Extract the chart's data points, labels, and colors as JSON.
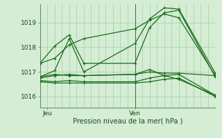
{
  "title": "",
  "xlabel": "Pression niveau de la mer( hPa )",
  "background_color": "#d4edd4",
  "grid_color": "#a8cca8",
  "line_color": "#1a6b1a",
  "ylim": [
    1015.55,
    1019.75
  ],
  "xlim": [
    0,
    48
  ],
  "xtick_positions": [
    2,
    26
  ],
  "xticklabels": [
    "Jeu",
    "Ven"
  ],
  "yticks": [
    1016,
    1017,
    1018,
    1019
  ],
  "ven_line_x": 26,
  "lines": [
    [
      0,
      1017.35,
      4,
      1017.55,
      8,
      1018.1,
      12,
      1018.35,
      26,
      1018.75,
      30,
      1019.1,
      34,
      1019.35,
      38,
      1019.2,
      48,
      1016.85
    ],
    [
      0,
      1017.35,
      4,
      1018.05,
      8,
      1018.5,
      12,
      1017.35,
      26,
      1017.35,
      30,
      1018.8,
      34,
      1019.4,
      38,
      1019.5,
      48,
      1016.8
    ],
    [
      0,
      1016.8,
      4,
      1017.05,
      8,
      1018.35,
      12,
      1017.0,
      26,
      1018.15,
      30,
      1019.15,
      34,
      1019.6,
      38,
      1019.55,
      48,
      1016.95
    ],
    [
      0,
      1016.8,
      4,
      1016.9,
      8,
      1016.85,
      12,
      1016.85,
      26,
      1016.9,
      30,
      1017.1,
      34,
      1016.85,
      38,
      1016.7,
      48,
      1016.05
    ],
    [
      0,
      1016.65,
      4,
      1016.6,
      8,
      1016.65,
      12,
      1016.6,
      26,
      1016.6,
      30,
      1016.75,
      34,
      1016.85,
      38,
      1016.9,
      48,
      1016.05
    ],
    [
      0,
      1016.6,
      4,
      1016.55,
      8,
      1016.55,
      12,
      1016.55,
      26,
      1016.55,
      30,
      1016.6,
      34,
      1016.7,
      38,
      1016.75,
      48,
      1016.0
    ],
    [
      0,
      1016.75,
      4,
      1016.85,
      8,
      1016.9,
      12,
      1016.85,
      26,
      1016.9,
      30,
      1017.0,
      34,
      1016.95,
      38,
      1016.95,
      48,
      1016.85
    ]
  ]
}
